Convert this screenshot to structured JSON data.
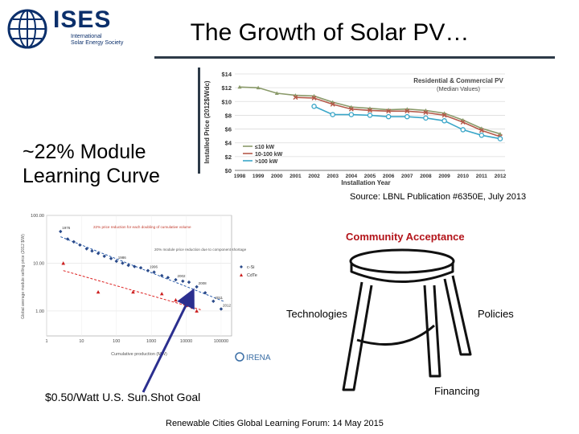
{
  "logo": {
    "name": "ISES",
    "subtitle_lines": [
      "International",
      "Solar Energy Society"
    ]
  },
  "slide": {
    "title": "The Growth of Solar PV…",
    "heading_lines": [
      "~22% Module",
      "Learning Curve"
    ],
    "source_note": "Source:  LBNL Publication #6350E, July 2013",
    "sunshot_goal": "$0.50/Watt U.S. Sun.Shot Goal",
    "footer": "Renewable Cities Global Learning Forum:  14 May 2015"
  },
  "stool": {
    "top_label": "Community Acceptance",
    "left_leg": "Technologies",
    "right_leg": "Policies",
    "back_leg": "Financing"
  },
  "colors": {
    "navy": "#0b2f6b",
    "accent_red": "#b3141a",
    "arrow_blue": "#2b2f8f",
    "series_small": "#8a9a6a",
    "series_mid": "#b55a4a",
    "series_large": "#3aa6c8"
  },
  "chart_data": [
    {
      "type": "line",
      "title": "Residential & Commercial PV",
      "subtitle": "(Median Values)",
      "xlabel": "Installation Year",
      "ylabel": "Installed Price (2012$/Wdc)",
      "x": [
        "1998",
        "1999",
        "2000",
        "2001",
        "2002",
        "2003",
        "2004",
        "2005",
        "2006",
        "2007",
        "2008",
        "2009",
        "2010",
        "2011",
        "2012"
      ],
      "ylim": [
        0,
        14
      ],
      "yticks": [
        "$0",
        "$2",
        "$4",
        "$6",
        "$8",
        "$10",
        "$12",
        "$14"
      ],
      "series": [
        {
          "name": "≤10 kW",
          "values": [
            12.1,
            12.0,
            11.2,
            10.9,
            10.8,
            9.9,
            9.2,
            9.0,
            8.8,
            8.9,
            8.7,
            8.3,
            7.3,
            6.1,
            5.3
          ]
        },
        {
          "name": "10-100 kW",
          "values": [
            null,
            null,
            null,
            10.6,
            10.5,
            9.6,
            8.9,
            8.7,
            8.6,
            8.6,
            8.4,
            8.0,
            7.0,
            5.8,
            4.9
          ]
        },
        {
          "name": ">100 kW",
          "values": [
            null,
            null,
            null,
            null,
            9.3,
            8.1,
            8.1,
            8.0,
            7.8,
            7.8,
            7.6,
            7.2,
            5.9,
            5.1,
            4.6
          ]
        }
      ]
    },
    {
      "type": "scatter",
      "title": "",
      "annotation_1": "22% price reduction for each doubling of cumulative volume",
      "annotation_2": "20% module price reduction due to component shortage",
      "xlabel": "Cumulative production (MW)",
      "ylabel": "Global average module selling price (2012 $/W)",
      "xscale": "log",
      "yscale": "log",
      "xticks": [
        "1",
        "10",
        "100",
        "1000",
        "10000",
        "100000"
      ],
      "yticks": [
        "1.00",
        "10.00",
        "100.00"
      ],
      "xlim": [
        1,
        200000
      ],
      "ylim": [
        0.3,
        100
      ],
      "legend": [
        "c-Si",
        "CdTe"
      ],
      "logo_text": "IRENA",
      "series": [
        {
          "name": "c-Si",
          "x": [
            2.5,
            4,
            6,
            9,
            14,
            20,
            30,
            45,
            70,
            100,
            150,
            220,
            330,
            500,
            800,
            1200,
            2000,
            3000,
            5000,
            8000,
            12000,
            20000,
            35000,
            60000,
            100000
          ],
          "y": [
            46,
            32,
            28,
            24,
            20,
            18,
            16,
            14,
            12.5,
            11,
            10,
            9,
            8.5,
            8,
            7,
            6.5,
            5.5,
            5,
            4.5,
            4.2,
            4,
            3.2,
            2.4,
            1.6,
            1.1
          ],
          "point_labels": [
            "1976",
            "",
            "",
            "",
            "",
            "",
            "",
            "",
            "",
            "1986",
            "",
            "",
            "",
            "",
            "1996",
            "",
            "",
            "",
            "2002",
            "",
            "",
            "2008",
            "",
            "2011",
            "2012"
          ]
        },
        {
          "name": "CdTe",
          "x": [
            3,
            30,
            300,
            2000,
            5000,
            10000,
            15000,
            20000
          ],
          "y": [
            10,
            2.5,
            2.5,
            2.3,
            1.7,
            1.3,
            1.2,
            1.0
          ]
        }
      ]
    }
  ]
}
